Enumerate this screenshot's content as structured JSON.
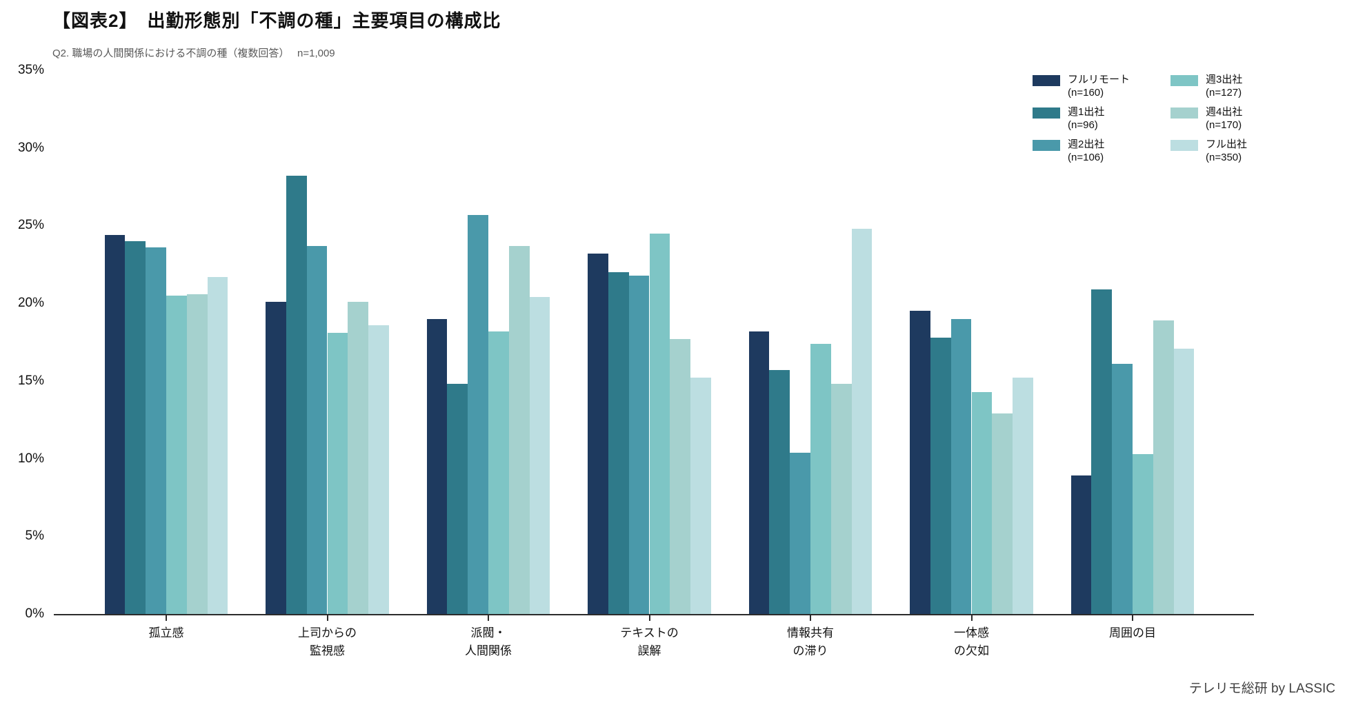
{
  "header": {
    "title": "【図表2】　出勤形態別「不調の種」主要項目の構成比",
    "subtitle": "Q2. 職場の人間関係における不調の種（複数回答）　 n=1,009"
  },
  "footer": {
    "credit": "テレリモ総研 by LASSIC"
  },
  "chart_data": {
    "type": "bar",
    "title": "【図表2】　出勤形態別「不調の種」主要項目の構成比",
    "subtitle": "Q2. 職場の人間関係における不調の種（複数回答）　 n=1,009",
    "categories": [
      "孤立感",
      "上司からの\n監視感",
      "派閥・\n人間関係",
      "テキストの\n誤解",
      "情報共有\nの滞り",
      "一体感\nの欠如",
      "周囲の目"
    ],
    "series": [
      {
        "name": "フルリモート",
        "n_label": "(n=160)",
        "color": "#1e3a5f",
        "values": [
          24.4,
          20.1,
          19.0,
          23.2,
          18.2,
          19.5,
          8.9
        ]
      },
      {
        "name": "週1出社",
        "n_label": "(n=96)",
        "color": "#2f7a8a",
        "values": [
          24.0,
          28.2,
          14.8,
          22.0,
          15.7,
          17.8,
          20.9
        ]
      },
      {
        "name": "週2出社",
        "n_label": "(n=106)",
        "color": "#4a99aa",
        "values": [
          23.6,
          23.7,
          25.7,
          21.8,
          10.4,
          19.0,
          16.1
        ]
      },
      {
        "name": "週3出社",
        "n_label": "(n=127)",
        "color": "#7ec5c5",
        "values": [
          20.5,
          18.1,
          18.2,
          24.5,
          17.4,
          14.3,
          10.3
        ]
      },
      {
        "name": "週4出社",
        "n_label": "(n=170)",
        "color": "#a5d1ce",
        "values": [
          20.6,
          20.1,
          23.7,
          17.7,
          14.8,
          12.9,
          18.9
        ]
      },
      {
        "name": "フル出社",
        "n_label": "(n=350)",
        "color": "#bcdee1",
        "values": [
          21.7,
          18.6,
          20.4,
          15.2,
          24.8,
          15.2,
          17.1
        ]
      }
    ],
    "yticks": [
      "0%",
      "5%",
      "10%",
      "15%",
      "20%",
      "25%",
      "30%",
      "35%"
    ],
    "ytick_values": [
      0,
      5,
      10,
      15,
      20,
      25,
      30,
      35
    ],
    "ylim": [
      0,
      35
    ],
    "grid": false,
    "legend_position": "top-right",
    "credit": "テレリモ総研 by LASSIC"
  }
}
